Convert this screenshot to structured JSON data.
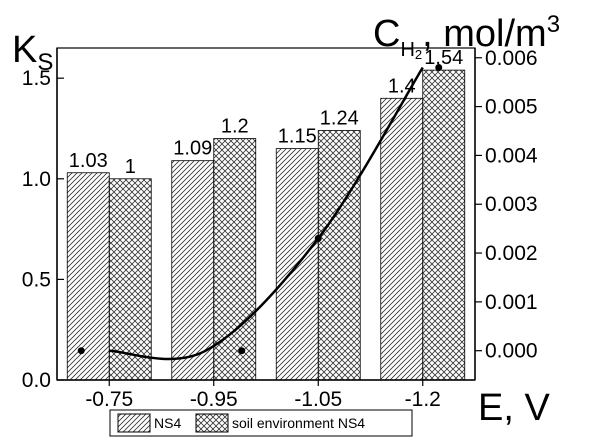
{
  "chart_data": {
    "type": "bar",
    "title": "",
    "categories": [
      "-0.75",
      "-0.95",
      "-1.05",
      "-1.2"
    ],
    "series": [
      {
        "name": "NS4",
        "values": [
          1.03,
          1.09,
          1.15,
          1.4
        ],
        "labels": [
          "1.03",
          "1.09",
          "1.15",
          "1.4"
        ],
        "pattern": "diagonal-hatch"
      },
      {
        "name": "soil environment NS4",
        "values": [
          1,
          1.2,
          1.24,
          1.54
        ],
        "labels": [
          "1",
          "1.2",
          "1.24",
          "1.54"
        ],
        "pattern": "cross-hatch"
      }
    ],
    "line_series": {
      "axis": "right",
      "points": [
        {
          "category": "-0.75",
          "value": 0.0
        },
        {
          "category": "-0.95",
          "value": 0.0
        },
        {
          "category": "-1.05",
          "value": 0.0023
        },
        {
          "category": "-1.2",
          "value": 0.0058
        }
      ]
    },
    "left_axis": {
      "label_main": "K",
      "label_sub": "S",
      "ylim": [
        0,
        1.65
      ],
      "ticks": [
        0.0,
        0.5,
        1.0,
        1.5
      ],
      "tick_labels": [
        "0.0",
        "0.5",
        "1.0",
        "1.5"
      ]
    },
    "right_axis": {
      "label_pre": "C",
      "label_sub": "H",
      "label_subsub": "2",
      "label_post": ", mol/m",
      "label_sup": "3",
      "ylim": [
        -0.0006,
        0.0062
      ],
      "ticks": [
        0.0,
        0.001,
        0.002,
        0.003,
        0.004,
        0.005,
        0.006
      ],
      "tick_labels": [
        "0.000",
        "0.001",
        "0.002",
        "0.003",
        "0.004",
        "0.005",
        "0.006"
      ]
    },
    "x_axis": {
      "label": "E, V"
    },
    "legend": {
      "position": "bottom"
    },
    "grid": false
  }
}
